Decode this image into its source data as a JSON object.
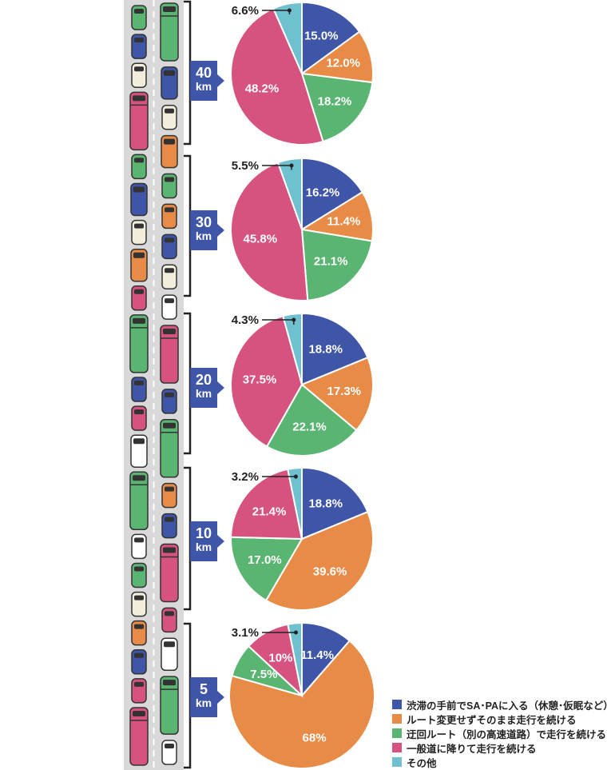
{
  "chart_data": [
    {
      "type": "pie",
      "distance": "40",
      "unit": "km",
      "values": [
        15.0,
        12.0,
        18.2,
        48.2,
        6.6
      ],
      "labels": [
        "15.0%",
        "12.0%",
        "18.2%",
        "48.2%",
        "6.6%"
      ]
    },
    {
      "type": "pie",
      "distance": "30",
      "unit": "km",
      "values": [
        16.2,
        11.4,
        21.1,
        45.8,
        5.5
      ],
      "labels": [
        "16.2%",
        "11.4%",
        "21.1%",
        "45.8%",
        "5.5%"
      ]
    },
    {
      "type": "pie",
      "distance": "20",
      "unit": "km",
      "values": [
        18.8,
        17.3,
        22.1,
        37.5,
        4.3
      ],
      "labels": [
        "18.8%",
        "17.3%",
        "22.1%",
        "37.5%",
        "4.3%"
      ]
    },
    {
      "type": "pie",
      "distance": "10",
      "unit": "km",
      "values": [
        18.8,
        39.6,
        17.0,
        21.4,
        3.2
      ],
      "labels": [
        "18.8%",
        "39.6%",
        "17.0%",
        "21.4%",
        "3.2%"
      ]
    },
    {
      "type": "pie",
      "distance": "5",
      "unit": "km",
      "values": [
        11.4,
        68,
        7.5,
        10,
        3.1
      ],
      "labels": [
        "11.4%",
        "68%",
        "7.5%",
        "10%",
        "3.1%"
      ]
    }
  ],
  "legend": [
    {
      "label": "渋滞の手前でSA･PAに入る（休憩･仮眠など）",
      "color": "#3f55a7"
    },
    {
      "label": "ルート変更せずそのまま走行を続ける",
      "color": "#e88b47"
    },
    {
      "label": "迂回ルート（別の高速道路）で走行を続ける",
      "color": "#5bb572"
    },
    {
      "label": "一般道に降りて走行を続ける",
      "color": "#d7537f"
    },
    {
      "label": "その他",
      "color": "#70c1cf"
    }
  ],
  "colors": [
    "#3f55a7",
    "#e88b47",
    "#5bb572",
    "#d7537f",
    "#70c1cf"
  ],
  "road_vehicles": {
    "left": [
      "green-car",
      "blue-car",
      "cream-car",
      "pink-truck",
      "green-car",
      "blue-van",
      "cream-car",
      "orange-van",
      "pink-car",
      "green-truck",
      "blue-car",
      "pink-car",
      "white-van",
      "green-truck",
      "white-car",
      "green-car",
      "cream-car",
      "orange-car",
      "blue-car",
      "pink-car",
      "pink-truck"
    ],
    "right": [
      "green-truck",
      "blue-van",
      "cream-car",
      "orange-van",
      "green-car",
      "orange-car",
      "blue-car",
      "cream-car",
      "white-car",
      "pink-truck",
      "blue-car",
      "green-truck",
      "orange-car",
      "blue-car",
      "pink-truck",
      "pink-car",
      "white-van",
      "green-truck",
      "white-car"
    ]
  }
}
